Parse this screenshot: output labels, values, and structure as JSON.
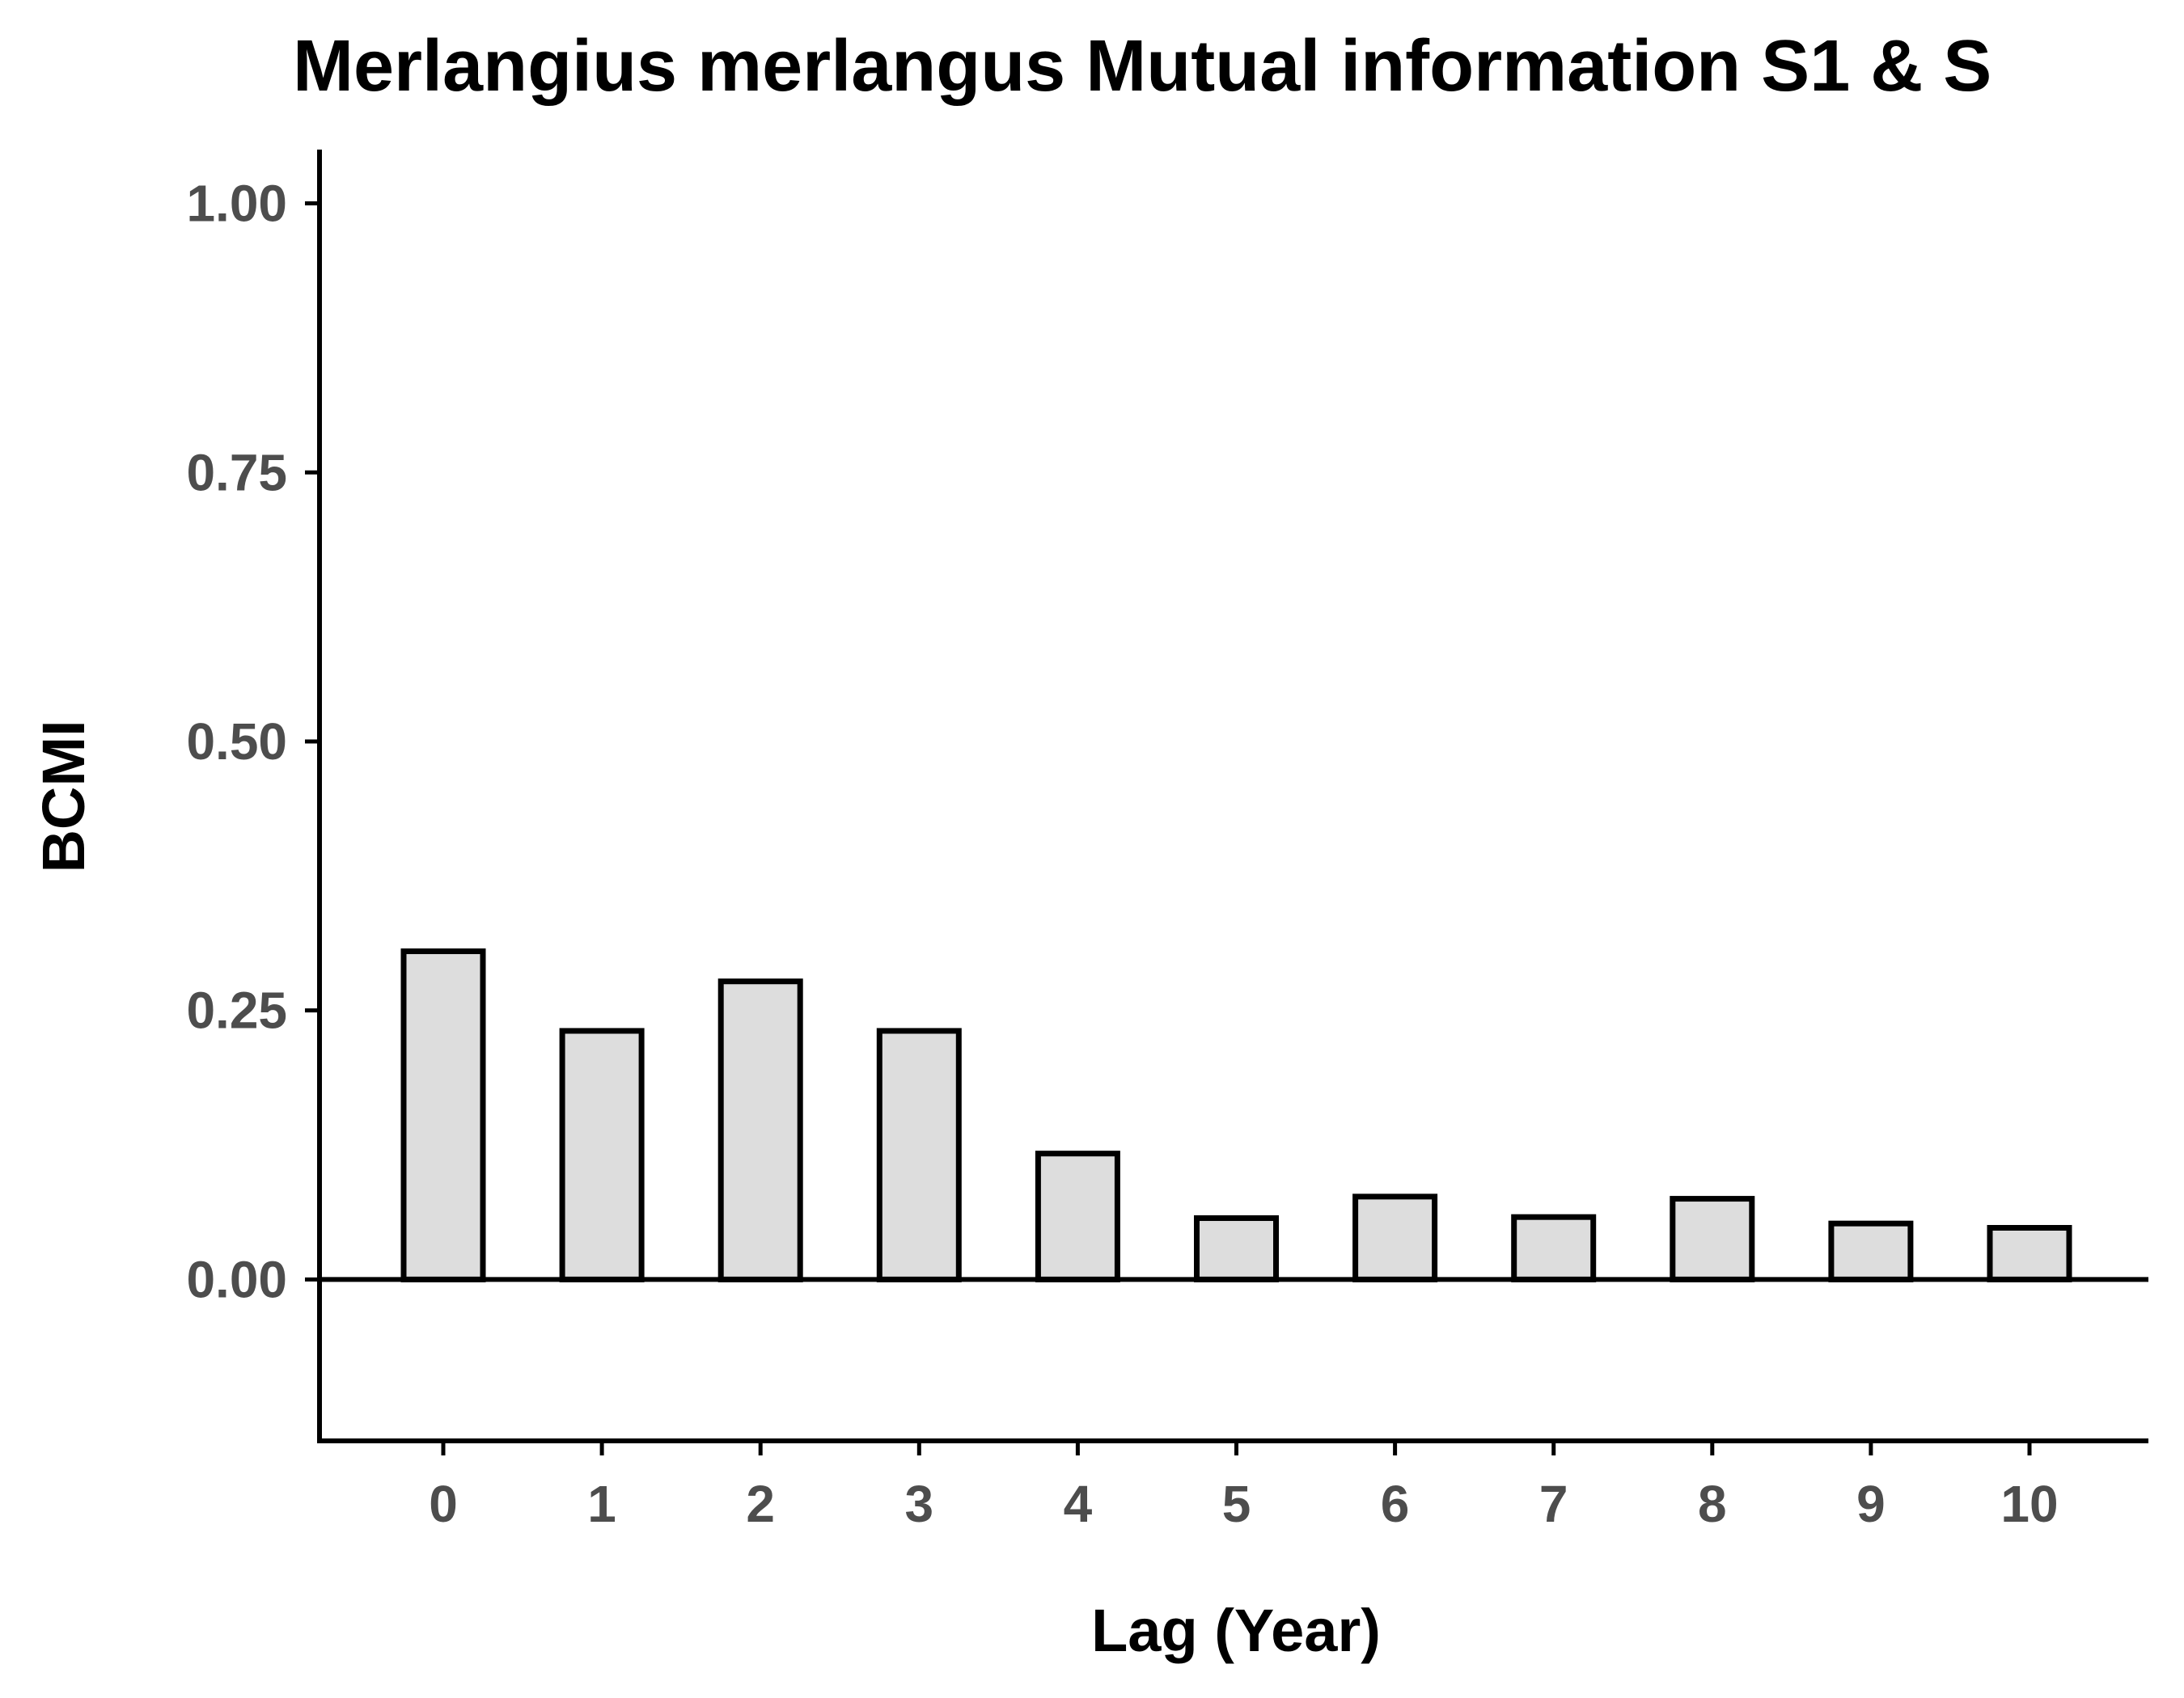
{
  "chart_data": {
    "type": "bar",
    "title": "Merlangius merlangus Mutual information S1 & S",
    "xlabel": "Lag (Year)",
    "ylabel": "BCMI",
    "categories": [
      "0",
      "1",
      "2",
      "3",
      "4",
      "5",
      "6",
      "7",
      "8",
      "9",
      "10"
    ],
    "values": [
      0.305,
      0.231,
      0.277,
      0.231,
      0.117,
      0.057,
      0.077,
      0.058,
      0.075,
      0.052,
      0.048
    ],
    "ylim": [
      -0.15,
      1.05
    ],
    "yticks": [
      0.0,
      0.25,
      0.5,
      0.75,
      1.0
    ],
    "ytick_labels": [
      "0.00",
      "0.25",
      "0.50",
      "0.75",
      "1.00"
    ],
    "grid": false,
    "legend": "none",
    "colors": {
      "bar_fill": "#dddddd",
      "bar_stroke": "#000000",
      "axis": "#000000",
      "tick_label": "#4d4d4d"
    }
  }
}
